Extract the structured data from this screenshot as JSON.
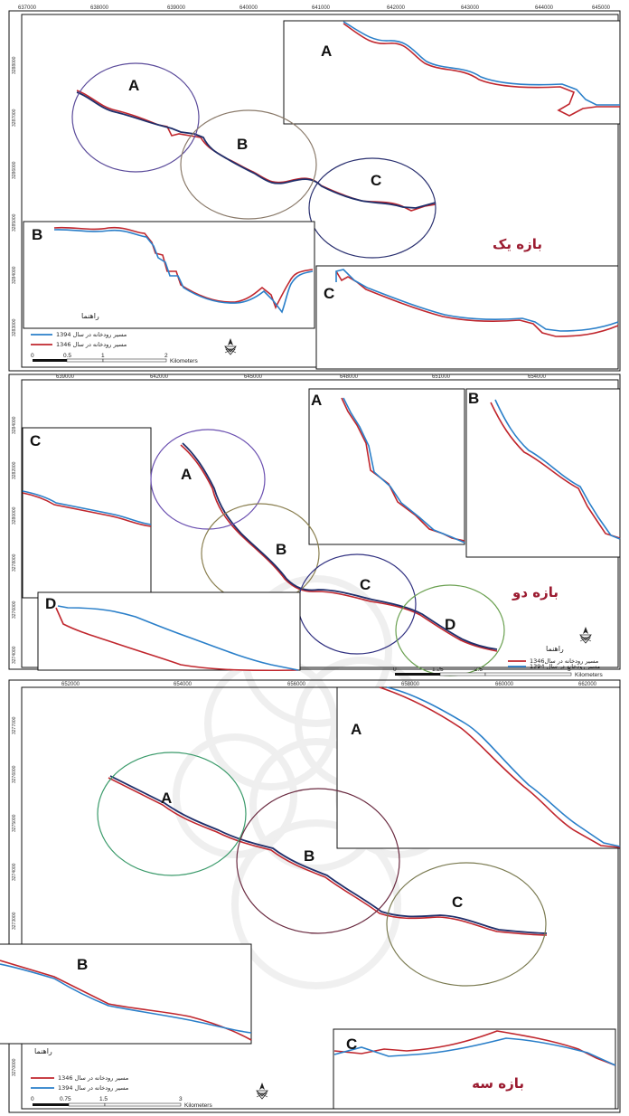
{
  "panels": [
    {
      "title": "بازه یک",
      "x_ticks": [
        "637000",
        "638000",
        "639000",
        "640000",
        "641000",
        "642000",
        "643000",
        "644000",
        "645000"
      ],
      "y_ticks_left": [
        "3288000",
        "3287000",
        "3286000",
        "3285000",
        "3284000",
        "3283000"
      ],
      "circles": [
        "A",
        "B",
        "C"
      ],
      "insets": [
        "A",
        "B",
        "C"
      ],
      "legend": {
        "item1": "مسیر رودخانه در سال 1394",
        "item2": "مسیر رودخانه در سال 1346",
        "guide": "راهنما"
      },
      "scale": {
        "labels": [
          "0",
          "0.5",
          "1",
          "2"
        ],
        "unit": "Kilometers"
      }
    },
    {
      "title": "بازه دو",
      "x_ticks": [
        "639000",
        "642000",
        "645000",
        "648000",
        "651000",
        "654000"
      ],
      "y_ticks_left": [
        "3284000",
        "3282000",
        "3280000",
        "3278000",
        "3276000",
        "3274000"
      ],
      "circles": [
        "A",
        "B",
        "C",
        "D"
      ],
      "insets": [
        "A",
        "B",
        "C",
        "D"
      ],
      "legend": {
        "item1": "مسیر رودخانه در سال1346",
        "item2": "مسیر رودخانه در سال 1394",
        "guide": "راهنما"
      },
      "scale": {
        "labels": [
          "0",
          "1.25",
          "2.5",
          "5"
        ],
        "unit": "Kilometers"
      }
    },
    {
      "title": "بازه سه",
      "x_ticks": [
        "652000",
        "654000",
        "656000",
        "658000",
        "660000",
        "662000"
      ],
      "y_ticks_left": [
        "3277000",
        "3276000",
        "3275000",
        "3274000",
        "3273000",
        "3272000",
        "3271000",
        "3270000"
      ],
      "circles": [
        "A",
        "B",
        "C"
      ],
      "insets": [
        "A",
        "B",
        "C"
      ],
      "legend": {
        "item1": "مسیر رودخانه در سال 1346",
        "item2": "مسیر رودخانه در سال 1394",
        "guide": "راهنما"
      },
      "scale": {
        "labels": [
          "0",
          "0.75",
          "1.5",
          "3"
        ],
        "unit": "Kilometers"
      }
    }
  ],
  "colors": {
    "river_1346": "#c0262d",
    "river_1394": "#2a7fc9",
    "title": "#9b1b30"
  },
  "icons": {
    "north_arrow": "north-arrow-icon"
  }
}
